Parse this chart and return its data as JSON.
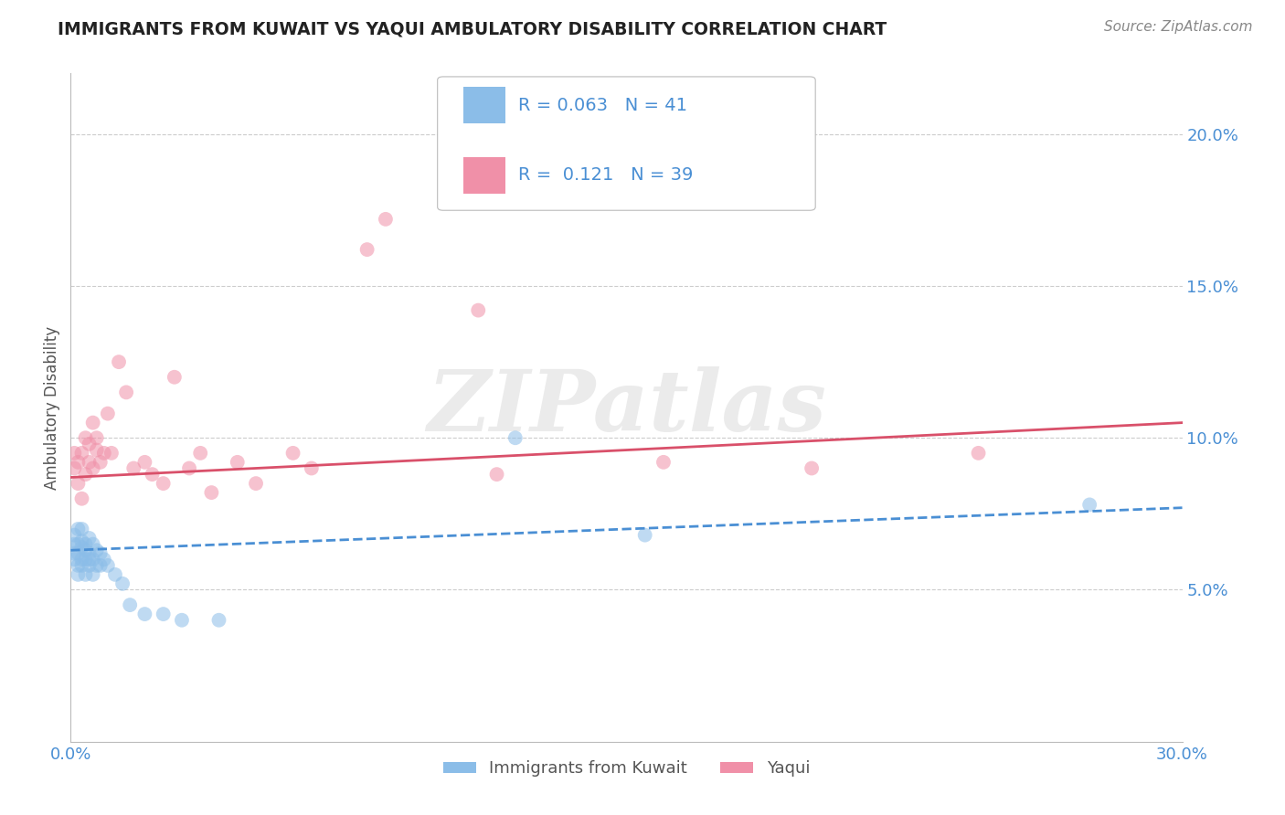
{
  "title": "IMMIGRANTS FROM KUWAIT VS YAQUI AMBULATORY DISABILITY CORRELATION CHART",
  "source_text": "Source: ZipAtlas.com",
  "ylabel": "Ambulatory Disability",
  "xlim": [
    0.0,
    0.3
  ],
  "ylim": [
    0.0,
    0.22
  ],
  "yticks": [
    0.05,
    0.1,
    0.15,
    0.2
  ],
  "ytick_labels": [
    "5.0%",
    "10.0%",
    "15.0%",
    "20.0%"
  ],
  "xtick_labels": [
    "0.0%",
    "30.0%"
  ],
  "series1_name": "Immigrants from Kuwait",
  "series1_color": "#8BBDE8",
  "series1_R": "0.063",
  "series1_N": "41",
  "series2_name": "Yaqui",
  "series2_color": "#F090A8",
  "series2_R": "0.121",
  "series2_N": "39",
  "trend1_color": "#4A8FD4",
  "trend2_color": "#D9506A",
  "watermark": "ZIPatlas",
  "background_color": "#FFFFFF",
  "grid_color": "#CCCCCC",
  "title_color": "#222222",
  "axis_label_color": "#555555",
  "tick_label_color": "#4A8FD4",
  "legend_R_color": "#4A8FD4",
  "series1_x": [
    0.001,
    0.001,
    0.001,
    0.001,
    0.002,
    0.002,
    0.002,
    0.002,
    0.002,
    0.003,
    0.003,
    0.003,
    0.003,
    0.003,
    0.004,
    0.004,
    0.004,
    0.004,
    0.005,
    0.005,
    0.005,
    0.005,
    0.006,
    0.006,
    0.006,
    0.007,
    0.007,
    0.008,
    0.008,
    0.009,
    0.01,
    0.012,
    0.014,
    0.016,
    0.02,
    0.025,
    0.03,
    0.04,
    0.12,
    0.155,
    0.275
  ],
  "series1_y": [
    0.062,
    0.065,
    0.06,
    0.068,
    0.058,
    0.065,
    0.07,
    0.055,
    0.062,
    0.058,
    0.064,
    0.06,
    0.066,
    0.07,
    0.055,
    0.06,
    0.065,
    0.063,
    0.058,
    0.062,
    0.067,
    0.06,
    0.055,
    0.065,
    0.06,
    0.058,
    0.063,
    0.058,
    0.062,
    0.06,
    0.058,
    0.055,
    0.052,
    0.045,
    0.042,
    0.042,
    0.04,
    0.04,
    0.1,
    0.068,
    0.078
  ],
  "series2_x": [
    0.001,
    0.001,
    0.002,
    0.002,
    0.003,
    0.003,
    0.004,
    0.004,
    0.005,
    0.005,
    0.006,
    0.006,
    0.007,
    0.007,
    0.008,
    0.009,
    0.01,
    0.011,
    0.013,
    0.015,
    0.017,
    0.02,
    0.022,
    0.025,
    0.028,
    0.032,
    0.035,
    0.038,
    0.045,
    0.05,
    0.06,
    0.065,
    0.08,
    0.085,
    0.11,
    0.115,
    0.16,
    0.2,
    0.245
  ],
  "series2_y": [
    0.09,
    0.095,
    0.085,
    0.092,
    0.08,
    0.095,
    0.088,
    0.1,
    0.092,
    0.098,
    0.09,
    0.105,
    0.096,
    0.1,
    0.092,
    0.095,
    0.108,
    0.095,
    0.125,
    0.115,
    0.09,
    0.092,
    0.088,
    0.085,
    0.12,
    0.09,
    0.095,
    0.082,
    0.092,
    0.085,
    0.095,
    0.09,
    0.162,
    0.172,
    0.142,
    0.088,
    0.092,
    0.09,
    0.095
  ],
  "trend1_x_start": 0.0,
  "trend1_x_end": 0.3,
  "trend1_y_start": 0.063,
  "trend1_y_end": 0.077,
  "trend2_x_start": 0.0,
  "trend2_x_end": 0.3,
  "trend2_y_start": 0.087,
  "trend2_y_end": 0.105
}
